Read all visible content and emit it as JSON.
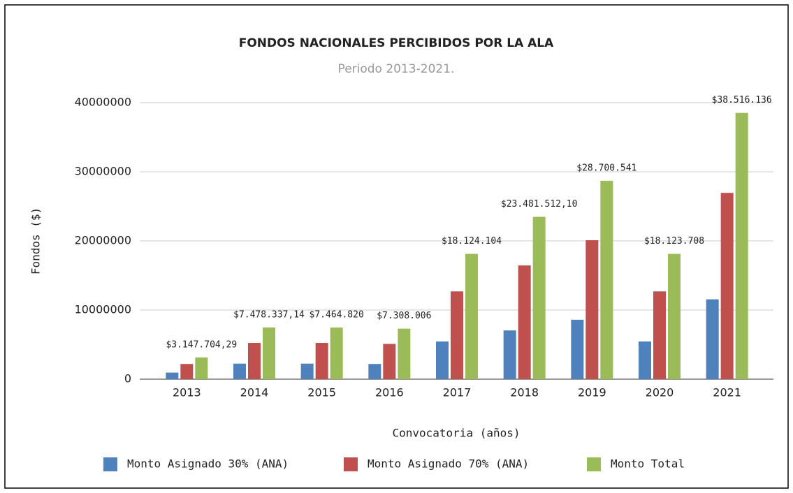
{
  "chart_data": {
    "type": "bar",
    "title": "FONDOS NACIONALES PERCIBIDOS POR LA ALA",
    "subtitle": "Periodo 2013-2021.",
    "x_label": "Convocatoria (años)",
    "y_label": "Fondos  ($)",
    "categories": [
      "2013",
      "2014",
      "2015",
      "2016",
      "2017",
      "2018",
      "2019",
      "2020",
      "2021"
    ],
    "series": [
      {
        "name": "Monto Asignado 30% (ANA)",
        "color": "#4f81bd",
        "values": [
          950000,
          2250000,
          2250000,
          2200000,
          5450000,
          7050000,
          8600000,
          5450000,
          11550000
        ]
      },
      {
        "name": "Monto Asignado 70% (ANA)",
        "color": "#c0504d",
        "values": [
          2200000,
          5250000,
          5250000,
          5100000,
          12700000,
          16450000,
          20100000,
          12700000,
          26950000
        ]
      },
      {
        "name": "Monto Total",
        "color": "#9bbb59",
        "values": [
          3147704.29,
          7478337.14,
          7464820,
          7308006,
          18124104,
          23481512.1,
          28700541,
          18123708,
          38516136
        ],
        "value_labels": [
          "$3.147.704,29",
          "$7.478.337,14",
          "$7.464.820",
          "$7.308.006",
          "$18.124.104",
          "$23.481.512,10",
          "$28.700.541",
          "$18.123.708",
          "$38.516.136"
        ]
      }
    ],
    "ylim": [
      0,
      40000000
    ],
    "yticks": [
      0,
      10000000,
      20000000,
      30000000,
      40000000
    ],
    "grid": true,
    "legend": "bottom"
  }
}
